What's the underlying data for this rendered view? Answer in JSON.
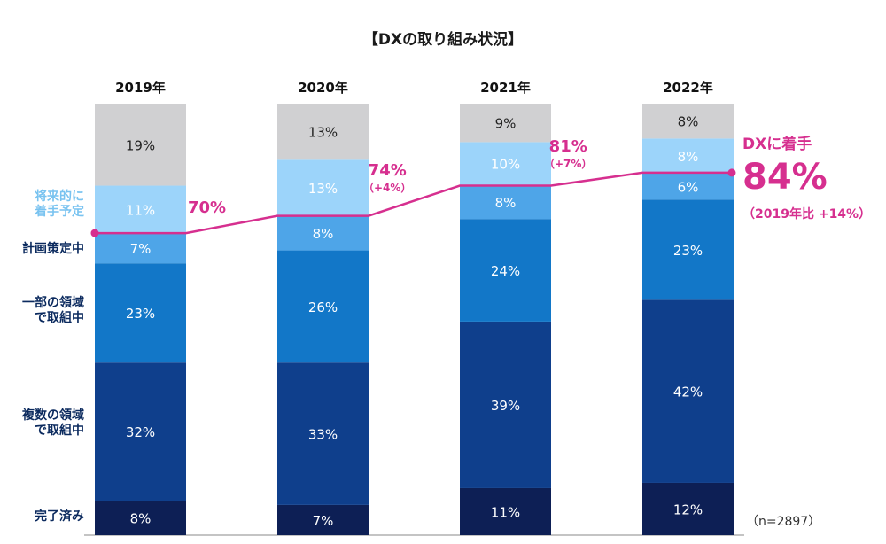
{
  "title": "【DXの取り組み状況】",
  "n_note": "（n=2897）",
  "categories_labels": [
    {
      "key": "planned",
      "lines": [
        "将来的に",
        "着手予定"
      ],
      "light": true
    },
    {
      "key": "planning",
      "lines": [
        "計画策定中"
      ],
      "light": false
    },
    {
      "key": "partial",
      "lines": [
        "一部の領域",
        "で取組中"
      ],
      "light": false
    },
    {
      "key": "multiple",
      "lines": [
        "複数の領域",
        "で取組中"
      ],
      "light": false
    },
    {
      "key": "done",
      "lines": [
        "完了済み"
      ],
      "light": false
    }
  ],
  "colors": {
    "done": "#0d1f55",
    "multiple": "#0f3f8c",
    "partial": "#1277c8",
    "planning": "#4ea5e8",
    "planned": "#9cd4fa",
    "none": "#d0d0d2",
    "line": "#d62f8f"
  },
  "chart_data": {
    "type": "bar",
    "stacked": true,
    "categories": [
      "2019年",
      "2020年",
      "2021年",
      "2022年"
    ],
    "series": [
      {
        "key": "done",
        "values": [
          8,
          7,
          11,
          12
        ]
      },
      {
        "key": "multiple",
        "values": [
          32,
          33,
          39,
          42
        ]
      },
      {
        "key": "partial",
        "values": [
          23,
          26,
          24,
          23
        ]
      },
      {
        "key": "planning",
        "values": [
          7,
          8,
          8,
          6
        ]
      },
      {
        "key": "planned",
        "values": [
          11,
          13,
          10,
          8
        ]
      },
      {
        "key": "none",
        "values": [
          19,
          13,
          9,
          8
        ]
      }
    ],
    "value_suffix": "%",
    "line": {
      "values": [
        70,
        74,
        81,
        84
      ],
      "labels": [
        "70%",
        "74%",
        "81%",
        "84%"
      ],
      "deltas": [
        "",
        "（+4%）",
        "（+7%）",
        "（2019年比 +14%）"
      ]
    },
    "dx_label": "DXに着手"
  }
}
